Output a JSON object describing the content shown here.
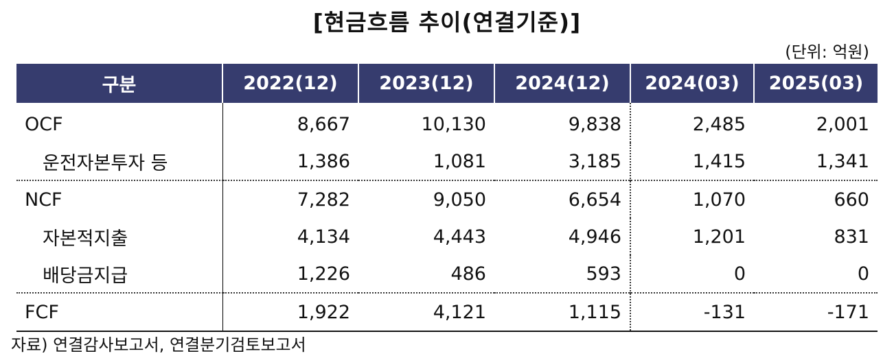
{
  "title": "[현금흐름 추이(연결기준)]",
  "unit": "(단위: 억원)",
  "headers": [
    "구분",
    "2022(12)",
    "2023(12)",
    "2024(12)",
    "2024(03)",
    "2025(03)"
  ],
  "rows": [
    {
      "label": "OCF",
      "values": [
        "8,667",
        "10,130",
        "9,838",
        "2,485",
        "2,001"
      ]
    },
    {
      "label": "운전자본투자 등",
      "values": [
        "1,386",
        "1,081",
        "3,185",
        "1,415",
        "1,341"
      ]
    },
    {
      "label": "NCF",
      "values": [
        "7,282",
        "9,050",
        "6,654",
        "1,070",
        "660"
      ]
    },
    {
      "label": "자본적지출",
      "values": [
        "4,134",
        "4,443",
        "4,946",
        "1,201",
        "831"
      ]
    },
    {
      "label": "배당금지급",
      "values": [
        "1,226",
        "486",
        "593",
        "0",
        "0"
      ]
    },
    {
      "label": "FCF",
      "values": [
        "1,922",
        "4,121",
        "1,115",
        "-131",
        "-171"
      ]
    }
  ],
  "source": "자료) 연결감사보고서, 연결분기검토보고서"
}
